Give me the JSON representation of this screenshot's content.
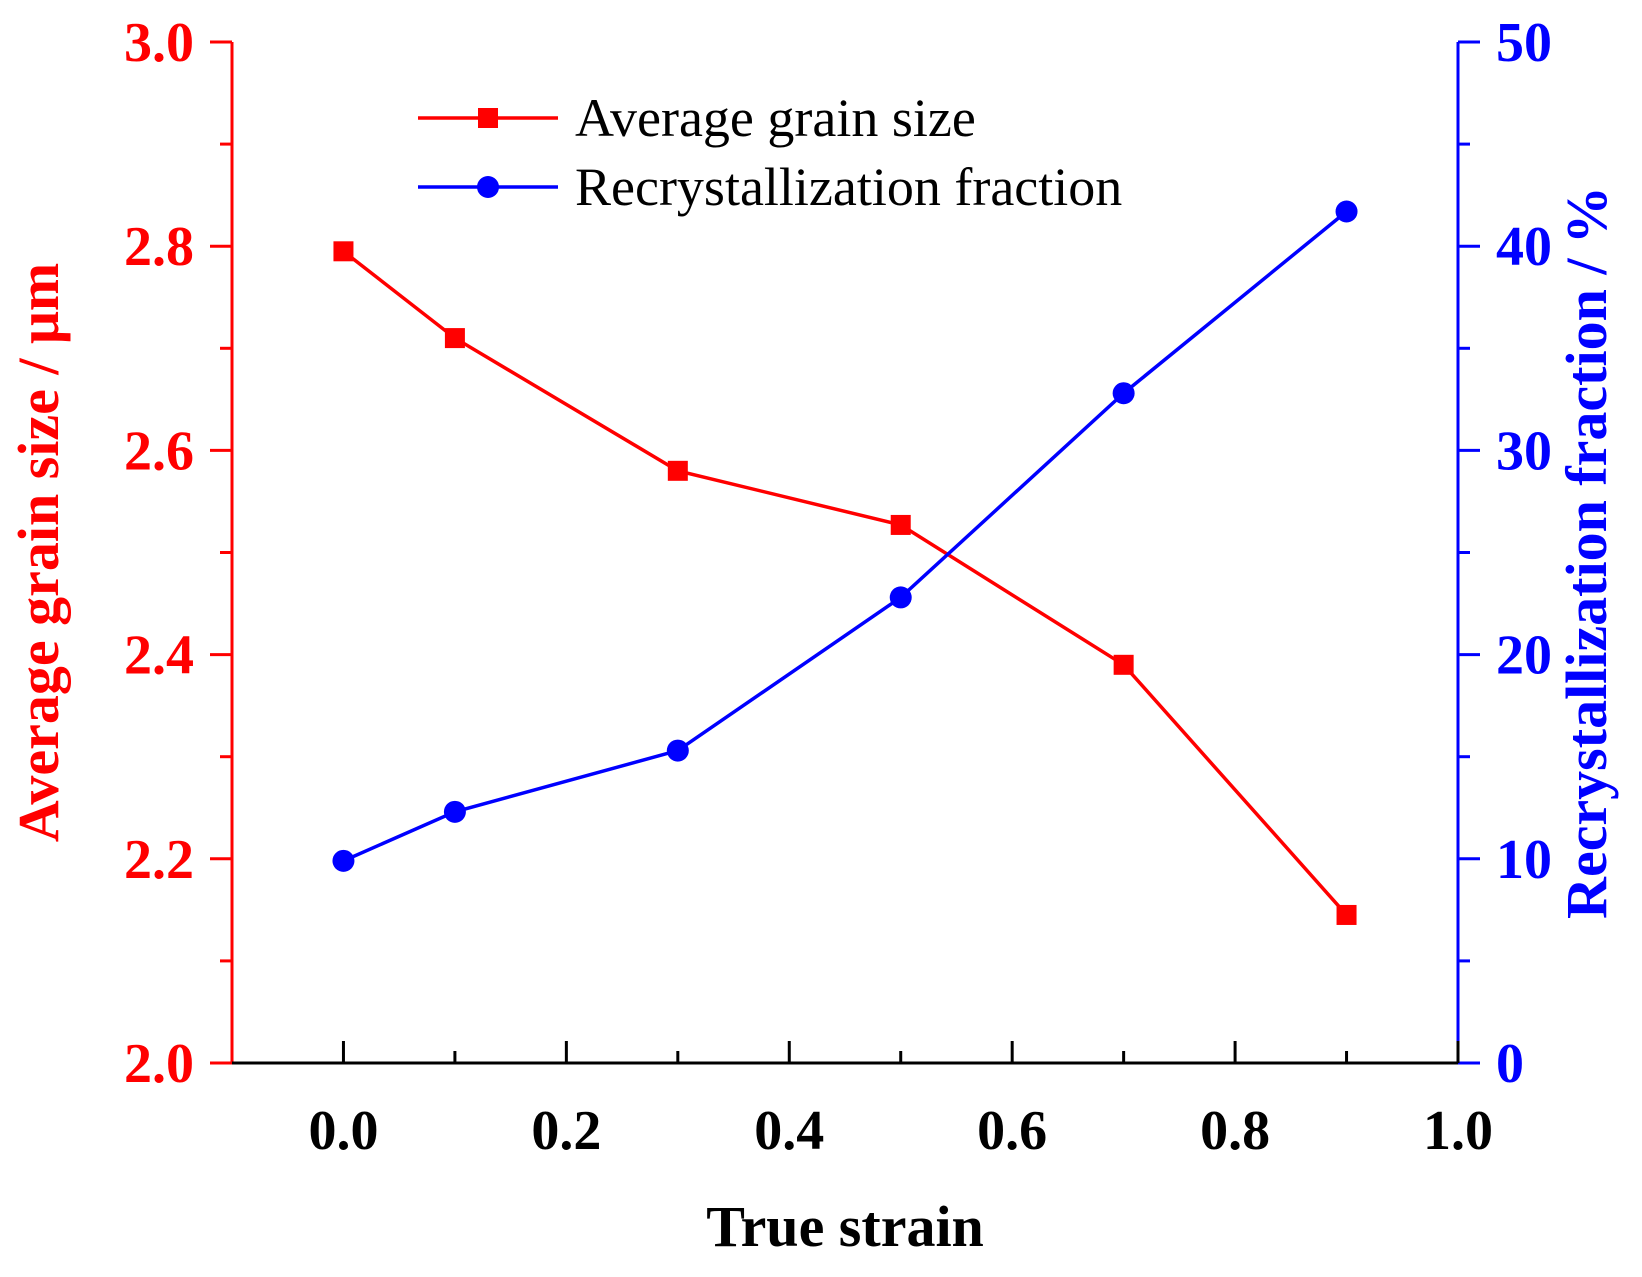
{
  "chart_data": {
    "type": "line",
    "title": "",
    "xlabel": "True strain",
    "ylabel_left": "Average grain size / μm",
    "ylabel_right": "Recrystallization fraction / %",
    "xlim": [
      -0.1,
      1.0
    ],
    "ylim_left": [
      2.0,
      3.0
    ],
    "ylim_right": [
      0,
      50
    ],
    "x_ticks": [
      0.0,
      0.2,
      0.4,
      0.6,
      0.8,
      1.0
    ],
    "x_tick_labels": [
      "0.0",
      "0.2",
      "0.4",
      "0.6",
      "0.8",
      "1.0"
    ],
    "y_left_ticks": [
      2.0,
      2.2,
      2.4,
      2.6,
      2.8,
      3.0
    ],
    "y_left_tick_labels": [
      "2.0",
      "2.2",
      "2.4",
      "2.6",
      "2.8",
      "3.0"
    ],
    "y_right_ticks": [
      0,
      10,
      20,
      30,
      40,
      50
    ],
    "y_right_tick_labels": [
      "0",
      "10",
      "20",
      "30",
      "40",
      "50"
    ],
    "grid": false,
    "legend_position": "top-center",
    "series": [
      {
        "name": "Average grain size",
        "axis": "left",
        "marker": "square",
        "color": "#ff0000",
        "x": [
          0.0,
          0.1,
          0.3,
          0.5,
          0.7,
          0.9
        ],
        "values": [
          2.795,
          2.71,
          2.58,
          2.527,
          2.39,
          2.145
        ]
      },
      {
        "name": "Recrystallization fraction",
        "axis": "right",
        "marker": "circle",
        "color": "#0000ff",
        "x": [
          0.0,
          0.1,
          0.3,
          0.5,
          0.7,
          0.9
        ],
        "values": [
          9.9,
          12.3,
          15.3,
          22.8,
          32.8,
          41.7
        ]
      }
    ],
    "colors": {
      "left_axis": "#ff0000",
      "right_axis": "#0000ff",
      "x_axis": "#000000"
    }
  }
}
